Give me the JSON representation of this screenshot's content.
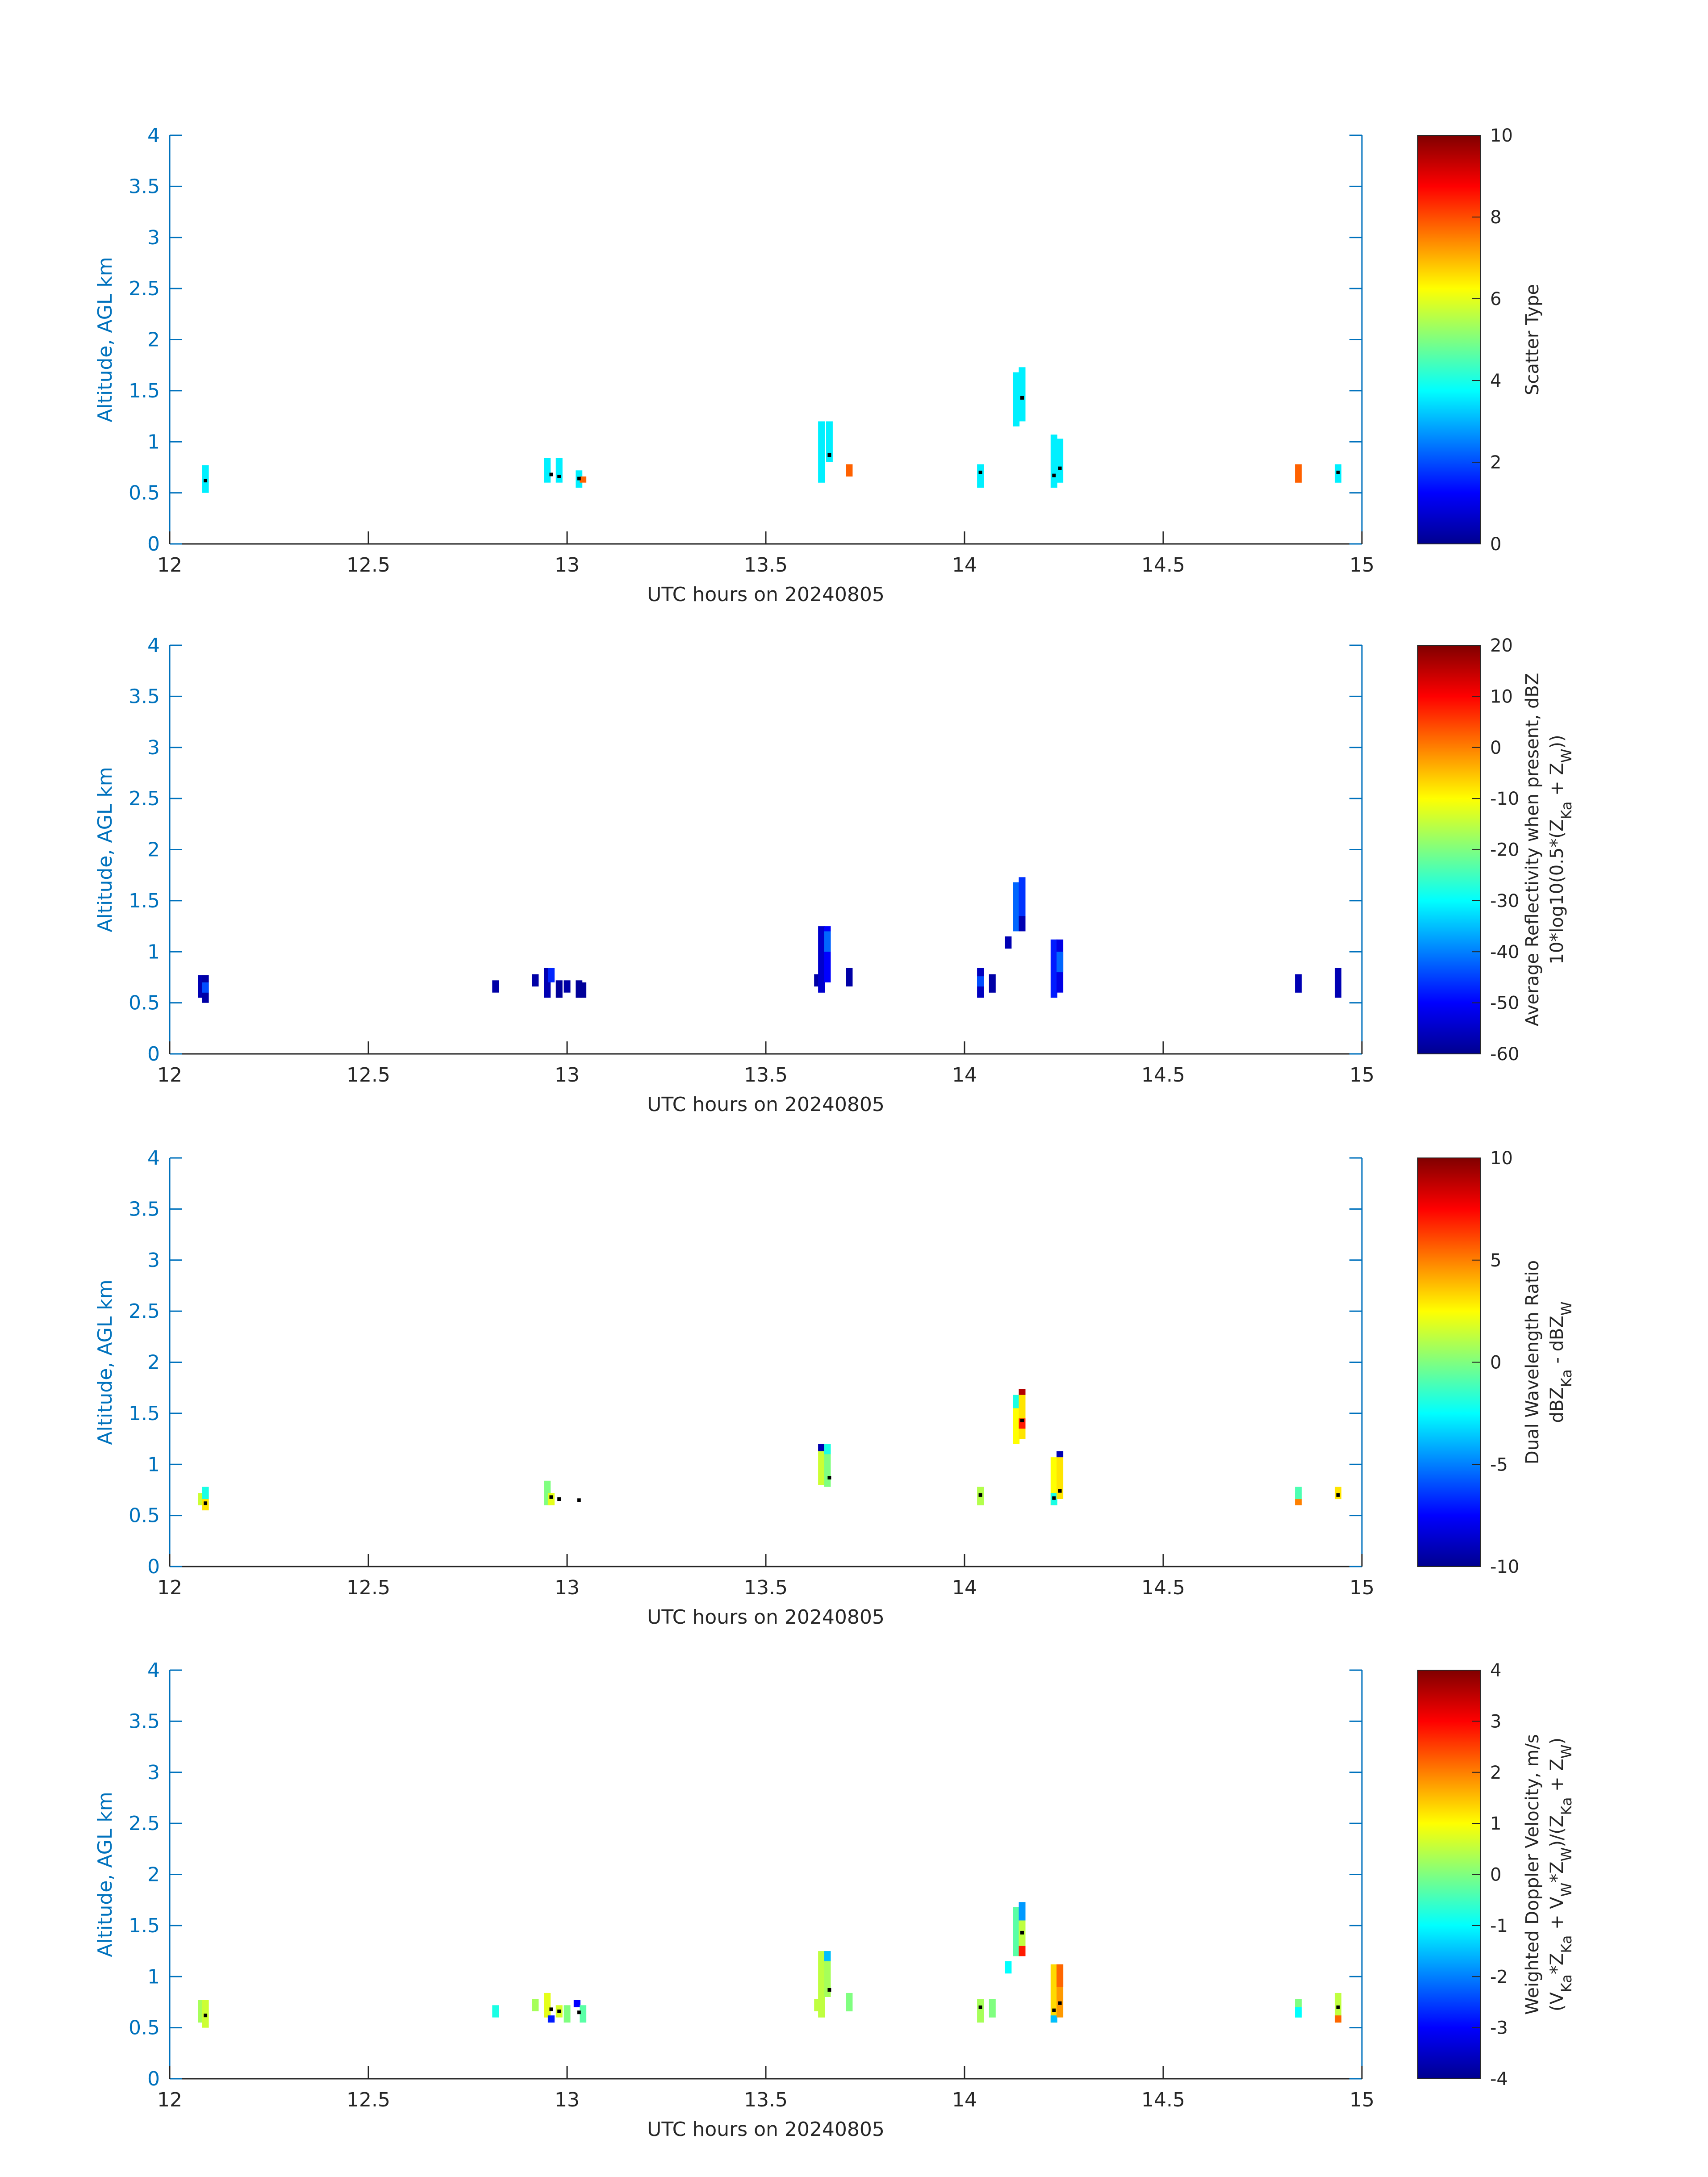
{
  "chart_data": [
    {
      "type": "heatmap",
      "panel": "scatter_type",
      "xlabel": "UTC hours on 20240805",
      "ylabel": "Altitude, AGL km",
      "xlim": [
        12,
        15
      ],
      "ylim": [
        0,
        4
      ],
      "xticks": [
        "12",
        "12.5",
        "13",
        "13.5",
        "14",
        "14.5",
        "15"
      ],
      "yticks": [
        "0",
        "0.5",
        "1",
        "1.5",
        "2",
        "2.5",
        "3",
        "3.5",
        "4"
      ],
      "colorbar": {
        "min": 0,
        "max": 10,
        "ticks": [
          "0",
          "2",
          "4",
          "6",
          "8",
          "10"
        ],
        "label_lines": [
          "Scatter Type"
        ]
      },
      "cells": [
        {
          "x": 12.09,
          "y0": 0.5,
          "y1": 0.77,
          "v": 3.6
        },
        {
          "x": 12.95,
          "y0": 0.6,
          "y1": 0.84,
          "v": 3.6
        },
        {
          "x": 12.98,
          "y0": 0.6,
          "y1": 0.84,
          "v": 3.6
        },
        {
          "x": 13.03,
          "y0": 0.55,
          "y1": 0.72,
          "v": 3.6
        },
        {
          "x": 13.04,
          "y0": 0.6,
          "y1": 0.66,
          "v": 7.8
        },
        {
          "x": 13.64,
          "y0": 0.6,
          "y1": 1.2,
          "v": 3.6
        },
        {
          "x": 13.66,
          "y0": 0.8,
          "y1": 1.2,
          "v": 3.6
        },
        {
          "x": 13.71,
          "y0": 0.66,
          "y1": 0.78,
          "v": 7.8
        },
        {
          "x": 14.04,
          "y0": 0.55,
          "y1": 0.78,
          "v": 3.6
        },
        {
          "x": 14.13,
          "y0": 1.15,
          "y1": 1.68,
          "v": 3.6
        },
        {
          "x": 14.145,
          "y0": 1.2,
          "y1": 1.73,
          "v": 3.6
        },
        {
          "x": 14.225,
          "y0": 0.55,
          "y1": 1.07,
          "v": 3.6
        },
        {
          "x": 14.24,
          "y0": 0.6,
          "y1": 1.03,
          "v": 3.6
        },
        {
          "x": 14.84,
          "y0": 0.6,
          "y1": 0.78,
          "v": 7.8
        },
        {
          "x": 14.94,
          "y0": 0.6,
          "y1": 0.78,
          "v": 3.6
        }
      ],
      "markers": [
        {
          "x": 12.09,
          "y": 0.62
        },
        {
          "x": 12.96,
          "y": 0.68
        },
        {
          "x": 12.98,
          "y": 0.66
        },
        {
          "x": 13.03,
          "y": 0.64
        },
        {
          "x": 13.66,
          "y": 0.87
        },
        {
          "x": 14.04,
          "y": 0.7
        },
        {
          "x": 14.145,
          "y": 1.43
        },
        {
          "x": 14.225,
          "y": 0.67
        },
        {
          "x": 14.24,
          "y": 0.74
        },
        {
          "x": 14.94,
          "y": 0.7
        }
      ]
    },
    {
      "type": "heatmap",
      "panel": "average_reflectivity",
      "xlabel": "UTC hours on 20240805",
      "ylabel": "Altitude, AGL km",
      "xlim": [
        12,
        15
      ],
      "ylim": [
        0,
        4
      ],
      "xticks": [
        "12",
        "12.5",
        "13",
        "13.5",
        "14",
        "14.5",
        "15"
      ],
      "yticks": [
        "0",
        "0.5",
        "1",
        "1.5",
        "2",
        "2.5",
        "3",
        "3.5",
        "4"
      ],
      "colorbar": {
        "min": -60,
        "max": 20,
        "ticks": [
          "-60",
          "-50",
          "-40",
          "-30",
          "-20",
          "-10",
          "0",
          "10",
          "20"
        ],
        "label_lines": [
          "Average Reflectivity when present, dBZ",
          "10*log10(0.5*(Z_Ka + Z_W))"
        ]
      },
      "cells": [
        {
          "x": 12.08,
          "y0": 0.55,
          "y1": 0.77,
          "v": -56
        },
        {
          "x": 12.09,
          "y0": 0.5,
          "y1": 0.77,
          "v": -57
        },
        {
          "x": 12.09,
          "y0": 0.6,
          "y1": 0.7,
          "v": -44
        },
        {
          "x": 12.82,
          "y0": 0.6,
          "y1": 0.72,
          "v": -57
        },
        {
          "x": 12.92,
          "y0": 0.66,
          "y1": 0.78,
          "v": -57
        },
        {
          "x": 12.95,
          "y0": 0.55,
          "y1": 0.84,
          "v": -56
        },
        {
          "x": 12.96,
          "y0": 0.7,
          "y1": 0.84,
          "v": -47
        },
        {
          "x": 12.98,
          "y0": 0.55,
          "y1": 0.72,
          "v": -58
        },
        {
          "x": 13.0,
          "y0": 0.6,
          "y1": 0.72,
          "v": -57
        },
        {
          "x": 13.03,
          "y0": 0.55,
          "y1": 0.72,
          "v": -58
        },
        {
          "x": 13.04,
          "y0": 0.55,
          "y1": 0.7,
          "v": -58
        },
        {
          "x": 13.63,
          "y0": 0.66,
          "y1": 0.78,
          "v": -57
        },
        {
          "x": 13.64,
          "y0": 0.6,
          "y1": 1.25,
          "v": -54
        },
        {
          "x": 13.655,
          "y0": 0.7,
          "y1": 1.25,
          "v": -50
        },
        {
          "x": 13.655,
          "y0": 1.0,
          "y1": 1.2,
          "v": -42
        },
        {
          "x": 13.71,
          "y0": 0.66,
          "y1": 0.84,
          "v": -57
        },
        {
          "x": 14.04,
          "y0": 0.55,
          "y1": 0.84,
          "v": -55
        },
        {
          "x": 14.04,
          "y0": 0.66,
          "y1": 0.76,
          "v": -44
        },
        {
          "x": 14.07,
          "y0": 0.6,
          "y1": 0.78,
          "v": -57
        },
        {
          "x": 14.11,
          "y0": 1.03,
          "y1": 1.15,
          "v": -56
        },
        {
          "x": 14.13,
          "y0": 1.2,
          "y1": 1.68,
          "v": -42
        },
        {
          "x": 14.145,
          "y0": 1.25,
          "y1": 1.73,
          "v": -46
        },
        {
          "x": 14.145,
          "y0": 1.2,
          "y1": 1.35,
          "v": -56
        },
        {
          "x": 14.225,
          "y0": 0.55,
          "y1": 1.12,
          "v": -48
        },
        {
          "x": 14.24,
          "y0": 0.6,
          "y1": 1.12,
          "v": -52
        },
        {
          "x": 14.24,
          "y0": 0.8,
          "y1": 1.0,
          "v": -42
        },
        {
          "x": 14.84,
          "y0": 0.6,
          "y1": 0.78,
          "v": -56
        },
        {
          "x": 14.94,
          "y0": 0.55,
          "y1": 0.84,
          "v": -56
        }
      ],
      "markers": []
    },
    {
      "type": "heatmap",
      "panel": "dual_wavelength_ratio",
      "xlabel": "UTC hours on 20240805",
      "ylabel": "Altitude, AGL km",
      "xlim": [
        12,
        15
      ],
      "ylim": [
        0,
        4
      ],
      "xticks": [
        "12",
        "12.5",
        "13",
        "13.5",
        "14",
        "14.5",
        "15"
      ],
      "yticks": [
        "0",
        "0.5",
        "1",
        "1.5",
        "2",
        "2.5",
        "3",
        "3.5",
        "4"
      ],
      "colorbar": {
        "min": -10,
        "max": 10,
        "ticks": [
          "-10",
          "-5",
          "0",
          "5",
          "10"
        ],
        "label_lines": [
          "Dual Wavelength Ratio",
          "dBZ_Ka - dBZ_W"
        ]
      },
      "cells": [
        {
          "x": 12.08,
          "y0": 0.6,
          "y1": 0.72,
          "v": 1.5
        },
        {
          "x": 12.09,
          "y0": 0.55,
          "y1": 0.66,
          "v": 3
        },
        {
          "x": 12.09,
          "y0": 0.66,
          "y1": 0.78,
          "v": -2
        },
        {
          "x": 12.95,
          "y0": 0.6,
          "y1": 0.84,
          "v": 0
        },
        {
          "x": 12.96,
          "y0": 0.6,
          "y1": 0.72,
          "v": 2
        },
        {
          "x": 13.64,
          "y0": 0.8,
          "y1": 1.2,
          "v": 1.5
        },
        {
          "x": 13.64,
          "y0": 1.13,
          "y1": 1.2,
          "v": -9
        },
        {
          "x": 13.655,
          "y0": 0.78,
          "y1": 1.2,
          "v": 0
        },
        {
          "x": 13.655,
          "y0": 1.1,
          "y1": 1.2,
          "v": -2
        },
        {
          "x": 14.04,
          "y0": 0.6,
          "y1": 0.78,
          "v": 1
        },
        {
          "x": 14.13,
          "y0": 1.2,
          "y1": 1.68,
          "v": 2.5
        },
        {
          "x": 14.13,
          "y0": 1.55,
          "y1": 1.68,
          "v": -2
        },
        {
          "x": 14.145,
          "y0": 1.25,
          "y1": 1.73,
          "v": 3
        },
        {
          "x": 14.145,
          "y0": 1.68,
          "y1": 1.74,
          "v": 9
        },
        {
          "x": 14.145,
          "y0": 1.35,
          "y1": 1.45,
          "v": 7
        },
        {
          "x": 14.225,
          "y0": 0.6,
          "y1": 1.07,
          "v": 2.5
        },
        {
          "x": 14.225,
          "y0": 0.6,
          "y1": 0.72,
          "v": -2
        },
        {
          "x": 14.24,
          "y0": 0.66,
          "y1": 1.07,
          "v": 3
        },
        {
          "x": 14.24,
          "y0": 1.07,
          "y1": 1.13,
          "v": -9
        },
        {
          "x": 14.84,
          "y0": 0.6,
          "y1": 0.72,
          "v": 5
        },
        {
          "x": 14.84,
          "y0": 0.66,
          "y1": 0.78,
          "v": -1
        },
        {
          "x": 14.94,
          "y0": 0.66,
          "y1": 0.78,
          "v": 3
        }
      ],
      "markers": [
        {
          "x": 12.09,
          "y": 0.62
        },
        {
          "x": 12.96,
          "y": 0.68
        },
        {
          "x": 12.98,
          "y": 0.66
        },
        {
          "x": 13.03,
          "y": 0.65
        },
        {
          "x": 13.66,
          "y": 0.87
        },
        {
          "x": 14.04,
          "y": 0.7
        },
        {
          "x": 14.145,
          "y": 1.43
        },
        {
          "x": 14.225,
          "y": 0.67
        },
        {
          "x": 14.24,
          "y": 0.74
        },
        {
          "x": 14.94,
          "y": 0.7
        }
      ]
    },
    {
      "type": "heatmap",
      "panel": "weighted_doppler_velocity",
      "xlabel": "UTC hours on 20240805",
      "ylabel": "Altitude, AGL km",
      "xlim": [
        12,
        15
      ],
      "ylim": [
        0,
        4
      ],
      "xticks": [
        "12",
        "12.5",
        "13",
        "13.5",
        "14",
        "14.5",
        "15"
      ],
      "yticks": [
        "0",
        "0.5",
        "1",
        "1.5",
        "2",
        "2.5",
        "3",
        "3.5",
        "4"
      ],
      "colorbar": {
        "min": -4,
        "max": 4,
        "ticks": [
          "-4",
          "-3",
          "-2",
          "-1",
          "0",
          "1",
          "2",
          "3",
          "4"
        ],
        "label_lines": [
          "Weighted Doppler Velocity, m/s",
          "(V_Ka*Z_Ka + V_W*Z_W)/(Z_Ka + Z_W)"
        ]
      },
      "cells": [
        {
          "x": 12.08,
          "y0": 0.55,
          "y1": 0.77,
          "v": 0.3
        },
        {
          "x": 12.09,
          "y0": 0.5,
          "y1": 0.77,
          "v": 0.6
        },
        {
          "x": 12.82,
          "y0": 0.6,
          "y1": 0.72,
          "v": -0.8
        },
        {
          "x": 12.92,
          "y0": 0.66,
          "y1": 0.78,
          "v": 0.3
        },
        {
          "x": 12.95,
          "y0": 0.6,
          "y1": 0.84,
          "v": 0.8
        },
        {
          "x": 12.96,
          "y0": 0.55,
          "y1": 0.62,
          "v": -2.8
        },
        {
          "x": 12.98,
          "y0": 0.6,
          "y1": 0.72,
          "v": 0.7
        },
        {
          "x": 13.0,
          "y0": 0.55,
          "y1": 0.72,
          "v": 0
        },
        {
          "x": 13.025,
          "y0": 0.7,
          "y1": 0.77,
          "v": -3
        },
        {
          "x": 13.04,
          "y0": 0.55,
          "y1": 0.72,
          "v": -0.3
        },
        {
          "x": 13.63,
          "y0": 0.66,
          "y1": 0.78,
          "v": 0.5
        },
        {
          "x": 13.64,
          "y0": 0.6,
          "y1": 1.25,
          "v": 0.5
        },
        {
          "x": 13.655,
          "y0": 0.8,
          "y1": 1.25,
          "v": 0.3
        },
        {
          "x": 13.655,
          "y0": 1.15,
          "y1": 1.25,
          "v": -1.5
        },
        {
          "x": 13.71,
          "y0": 0.66,
          "y1": 0.84,
          "v": 0
        },
        {
          "x": 14.04,
          "y0": 0.55,
          "y1": 0.78,
          "v": 0.3
        },
        {
          "x": 14.07,
          "y0": 0.6,
          "y1": 0.78,
          "v": 0
        },
        {
          "x": 14.11,
          "y0": 1.03,
          "y1": 1.15,
          "v": -1
        },
        {
          "x": 14.13,
          "y0": 1.2,
          "y1": 1.68,
          "v": -0.3
        },
        {
          "x": 14.145,
          "y0": 1.25,
          "y1": 1.73,
          "v": 0.5
        },
        {
          "x": 14.145,
          "y0": 1.55,
          "y1": 1.73,
          "v": -1.8
        },
        {
          "x": 14.145,
          "y0": 1.2,
          "y1": 1.3,
          "v": 2.8
        },
        {
          "x": 14.225,
          "y0": 0.55,
          "y1": 1.12,
          "v": 1.3
        },
        {
          "x": 14.225,
          "y0": 0.55,
          "y1": 0.62,
          "v": -1.5
        },
        {
          "x": 14.24,
          "y0": 0.6,
          "y1": 1.12,
          "v": 1.8
        },
        {
          "x": 14.24,
          "y0": 0.9,
          "y1": 1.12,
          "v": 2.2
        },
        {
          "x": 14.84,
          "y0": 0.6,
          "y1": 0.78,
          "v": 0
        },
        {
          "x": 14.84,
          "y0": 0.6,
          "y1": 0.7,
          "v": -1
        },
        {
          "x": 14.94,
          "y0": 0.55,
          "y1": 0.84,
          "v": 0.5
        },
        {
          "x": 14.94,
          "y0": 0.55,
          "y1": 0.62,
          "v": 2.2
        }
      ],
      "markers": [
        {
          "x": 12.09,
          "y": 0.62
        },
        {
          "x": 12.96,
          "y": 0.68
        },
        {
          "x": 12.98,
          "y": 0.66
        },
        {
          "x": 13.03,
          "y": 0.65
        },
        {
          "x": 13.66,
          "y": 0.87
        },
        {
          "x": 14.04,
          "y": 0.7
        },
        {
          "x": 14.145,
          "y": 1.43
        },
        {
          "x": 14.225,
          "y": 0.67
        },
        {
          "x": 14.24,
          "y": 0.74
        },
        {
          "x": 14.94,
          "y": 0.7
        }
      ]
    }
  ]
}
